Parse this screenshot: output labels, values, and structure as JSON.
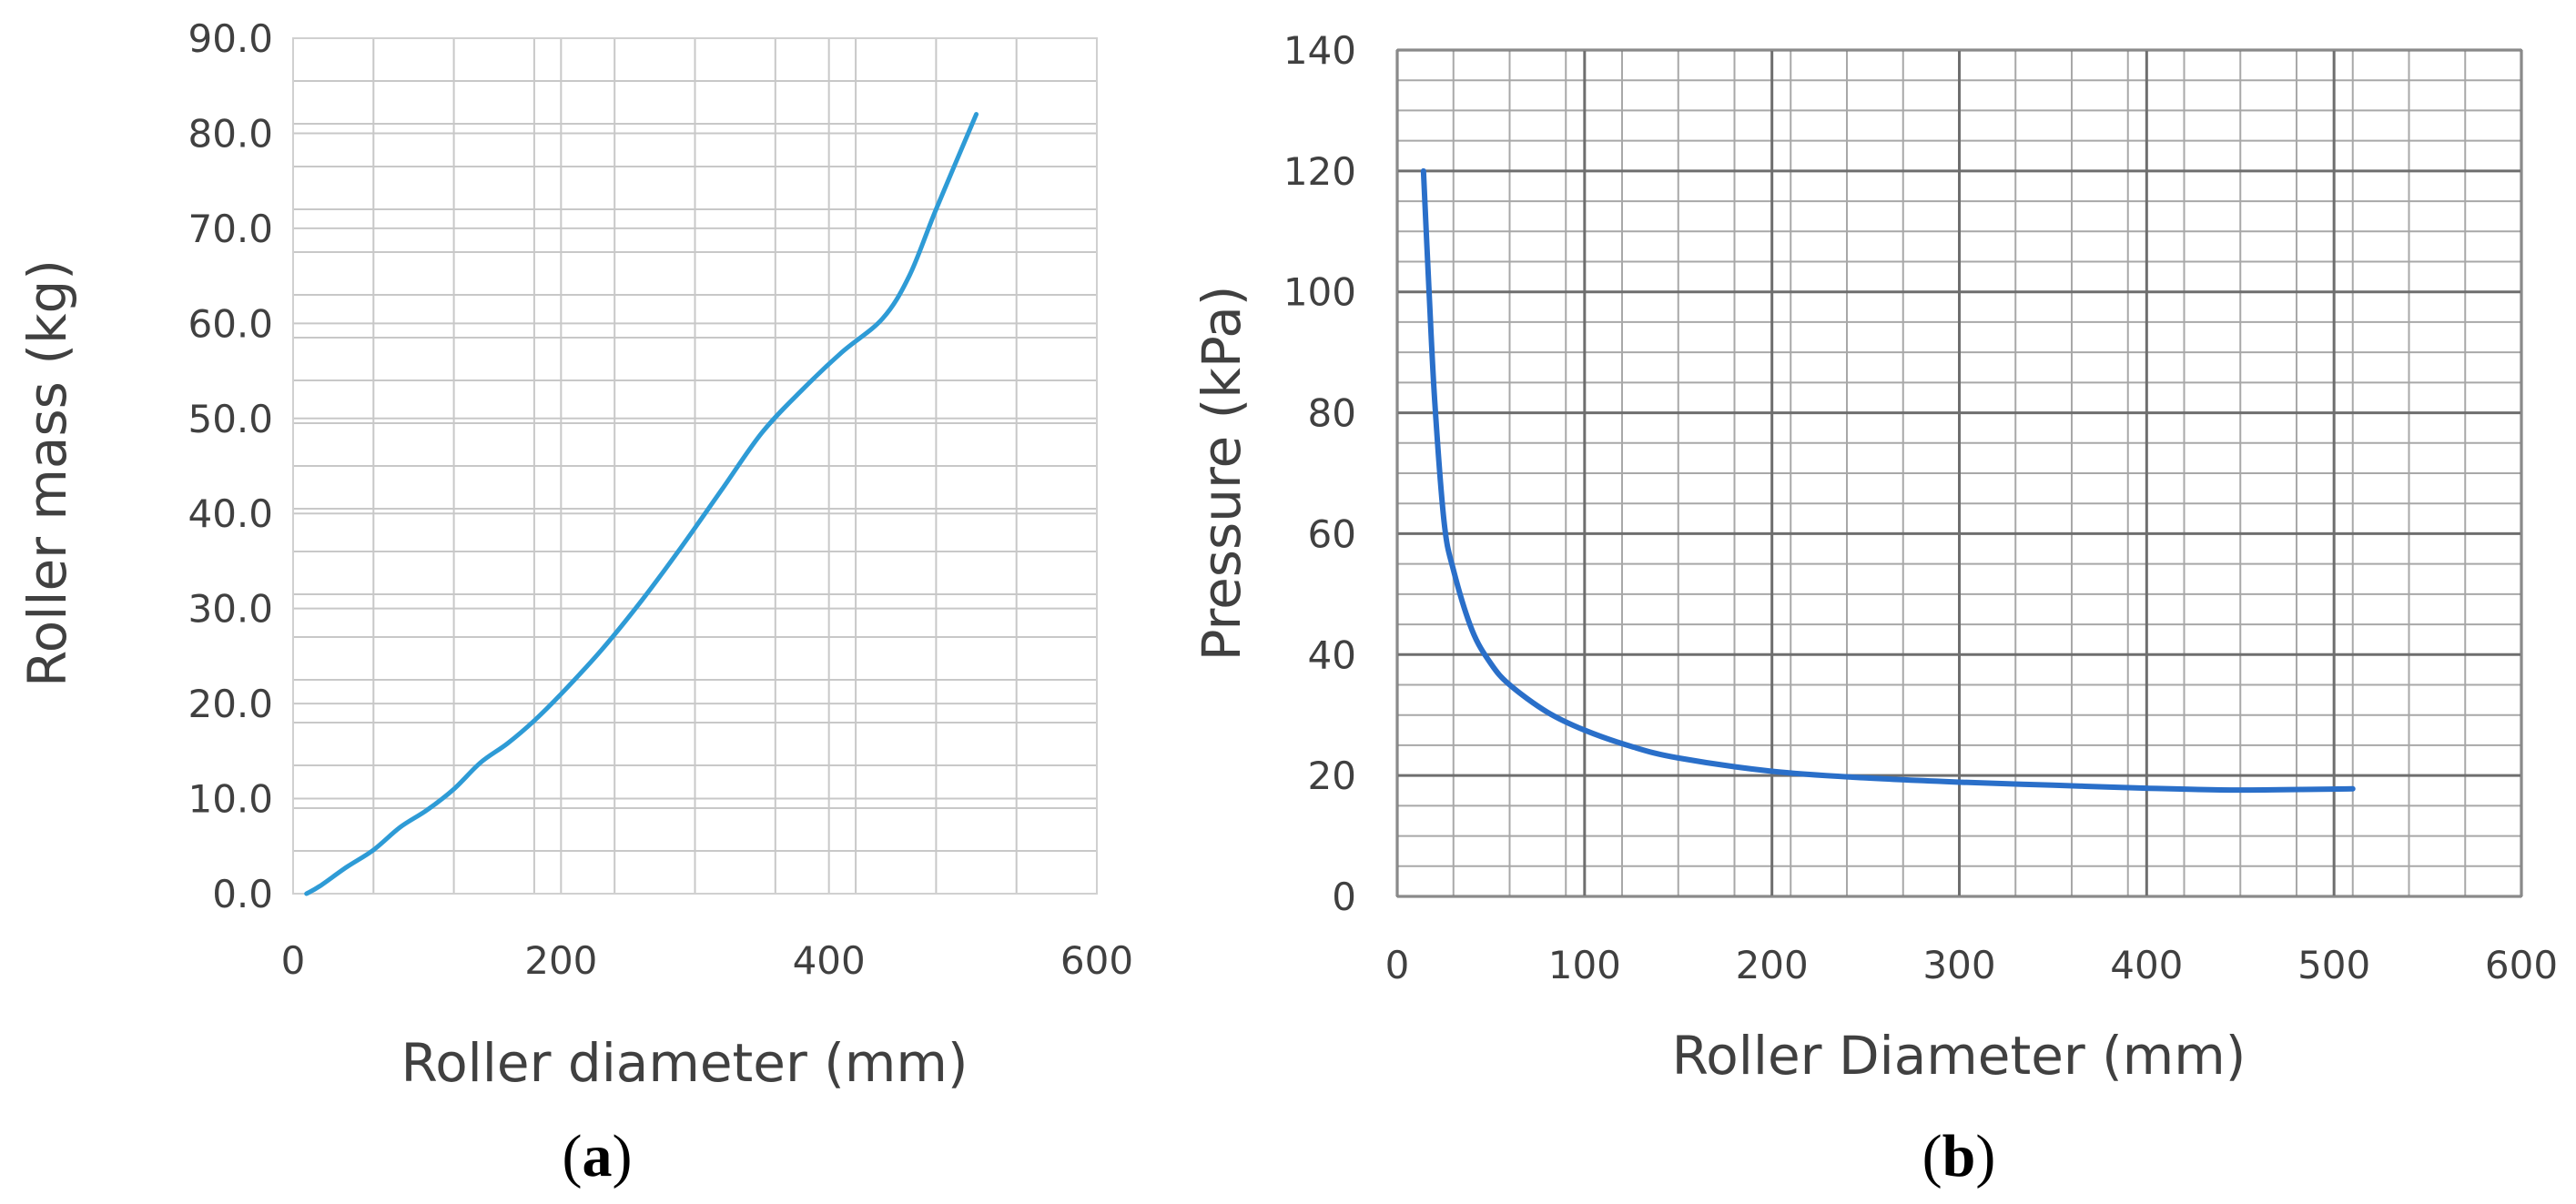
{
  "chart_data": [
    {
      "id": "a",
      "type": "line",
      "caption_letter": "a",
      "xlabel": "Roller diameter (mm)",
      "ylabel": "Roller mass (kg)",
      "xlim": [
        0,
        600
      ],
      "ylim": [
        0,
        90
      ],
      "xticks": [
        0,
        200,
        400,
        600
      ],
      "yticks": [
        0,
        10,
        20,
        30,
        40,
        50,
        60,
        70,
        80,
        90
      ],
      "ytick_labels": [
        "0.0",
        "10.0",
        "20.0",
        "30.0",
        "40.0",
        "50.0",
        "60.0",
        "70.0",
        "80.0",
        "90.0"
      ],
      "grid": true,
      "series": [
        {
          "name": "Roller mass",
          "color": "#2e9bd6",
          "x": [
            10,
            20,
            40,
            60,
            80,
            100,
            120,
            140,
            160,
            180,
            200,
            230,
            260,
            290,
            320,
            350,
            380,
            410,
            440,
            460,
            480,
            510
          ],
          "y": [
            0.0,
            0.8,
            2.8,
            4.6,
            7.0,
            8.8,
            11.0,
            13.8,
            15.8,
            18.2,
            21.0,
            25.6,
            30.8,
            36.5,
            42.5,
            48.5,
            53.0,
            57.0,
            60.5,
            65.0,
            72.0,
            82.0
          ]
        }
      ]
    },
    {
      "id": "b",
      "type": "line",
      "caption_letter": "b",
      "xlabel": "Roller Diameter (mm)",
      "ylabel": "Pressure (kPa)",
      "xlim": [
        0,
        600
      ],
      "ylim": [
        0,
        140
      ],
      "xticks": [
        0,
        100,
        200,
        300,
        400,
        500,
        600
      ],
      "yticks": [
        0,
        20,
        40,
        60,
        80,
        100,
        120,
        140
      ],
      "ytick_labels": [
        "0",
        "20",
        "40",
        "60",
        "80",
        "100",
        "120",
        "140"
      ],
      "grid": true,
      "series": [
        {
          "name": "Pressure",
          "color": "#2a6fc9",
          "x": [
            14,
            17,
            20,
            25,
            30,
            40,
            50,
            60,
            80,
            100,
            125,
            150,
            200,
            250,
            300,
            350,
            400,
            450,
            510
          ],
          "y": [
            120,
            100,
            82,
            62,
            54,
            44,
            38.5,
            35,
            30.5,
            27.5,
            24.8,
            22.9,
            20.7,
            19.6,
            18.9,
            18.4,
            17.9,
            17.6,
            17.8
          ]
        }
      ]
    }
  ]
}
